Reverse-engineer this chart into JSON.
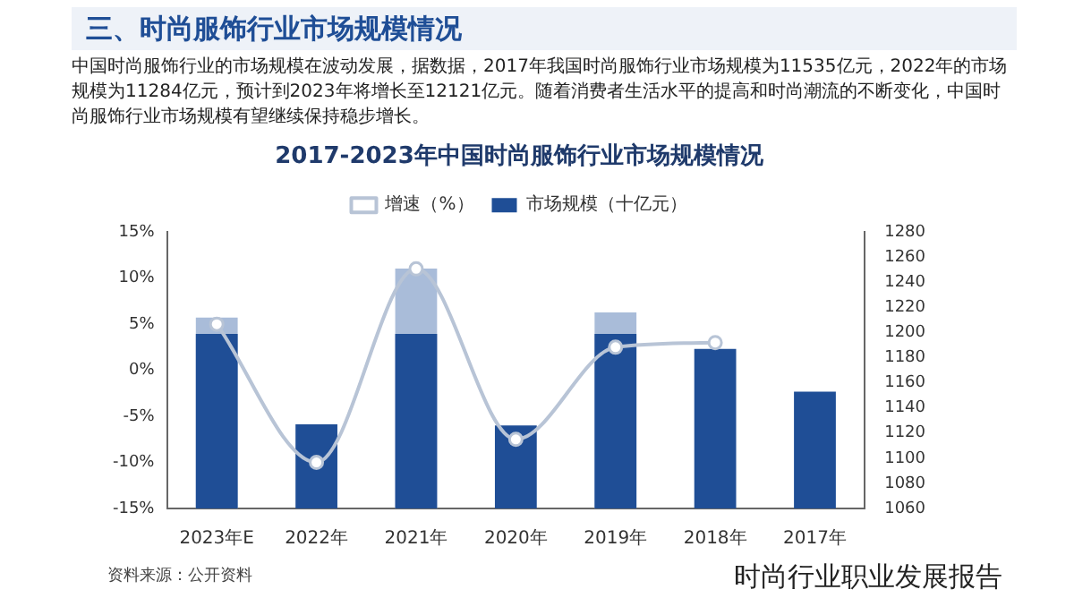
{
  "chart_data": {
    "type": "bar",
    "title": "2017-2023年中国时尚服饰行业市场规模情况",
    "subtitle": "三、时尚服饰行业市场规模情况",
    "annotations": [
      "中国时尚服饰行业的市场规模在波动发展，据数据，2017年我国时尚服饰行业市场规模为11535亿元，2022年的市场规模为11284亿元，预计到2023年将增长至12121亿元。随着消费者生活水平的提高和时尚潮流的不断变化，中国时尚服饰行业市场规模有望继续保持稳步增长。",
      "资料来源：公开资料",
      "时尚行业职业发展报告"
    ],
    "categories": [
      "2023年E",
      "2022年",
      "2021年",
      "2020年",
      "2019年",
      "2018年",
      "2017年"
    ],
    "series": [
      {
        "name": "市场规模（十亿元）",
        "color": "#1f4e96",
        "axis": "y2",
        "values": [
          1199,
          1127,
          1199,
          1126,
          1199,
          1187,
          1153
        ]
      },
      {
        "color": "#a9bcd9",
        "axis": "y2",
        "values": [
          1212,
          null,
          1251,
          null,
          1216,
          null,
          null
        ]
      },
      {
        "name": "增速（%）",
        "type": "line",
        "color": "#b8c4d6",
        "axis": "y",
        "marker": "circle",
        "values": [
          5,
          -10,
          11,
          -7.5,
          2.5,
          3,
          null
        ]
      }
    ],
    "ylim": [
      -15,
      15
    ],
    "yticks": [
      {
        "value": 15,
        "label": "15%"
      },
      {
        "value": 10,
        "label": "10%"
      },
      {
        "value": 5,
        "label": "5%"
      },
      {
        "value": 0,
        "label": "0%"
      },
      {
        "value": -5,
        "label": "-5%"
      },
      {
        "value": -10,
        "label": "-10%"
      },
      {
        "value": -15,
        "label": "-15%"
      }
    ],
    "y2lim": [
      1060,
      1280
    ],
    "y2ticks": [
      1060,
      1080,
      1100,
      1120,
      1140,
      1160,
      1180,
      1200,
      1220,
      1240,
      1260,
      1280
    ],
    "grid": false,
    "legend": "top"
  }
}
